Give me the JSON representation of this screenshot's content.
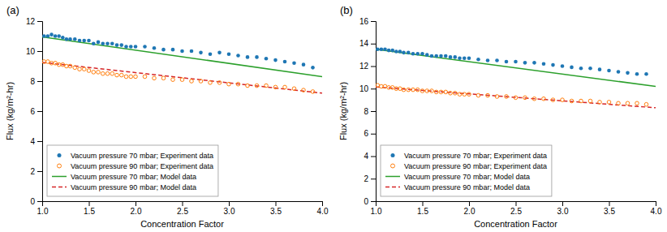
{
  "chart_data": [
    {
      "type": "scatter",
      "title": "(a)",
      "xlabel": "Concentration Factor",
      "ylabel": "Flux (kg/m²-hr)",
      "xlim": [
        1.0,
        4.0
      ],
      "xticks": [
        {
          "value": 1.0,
          "label": "1.0"
        },
        1.5,
        {
          "value": 2.0,
          "label": "2.0"
        },
        2.5,
        {
          "value": 3.0,
          "label": "3.0"
        },
        3.5,
        {
          "value": 4.0,
          "label": "4.0"
        }
      ],
      "ylim": [
        0,
        12
      ],
      "yticks": [
        0,
        2,
        4,
        6,
        8,
        10,
        12
      ],
      "grid": false,
      "legend": "lower left",
      "series": [
        {
          "name": "Vacuum pressure 70 mbar; Experiment data",
          "type": "scatter",
          "marker": "circle",
          "x": [
            1.02,
            1.06,
            1.1,
            1.14,
            1.18,
            1.22,
            1.26,
            1.3,
            1.35,
            1.4,
            1.45,
            1.5,
            1.55,
            1.6,
            1.65,
            1.7,
            1.75,
            1.8,
            1.85,
            1.9,
            1.95,
            2.0,
            2.1,
            2.2,
            2.3,
            2.4,
            2.5,
            2.6,
            2.7,
            2.8,
            2.9,
            3.0,
            3.1,
            3.2,
            3.3,
            3.4,
            3.5,
            3.6,
            3.7,
            3.8,
            3.9
          ],
          "values": [
            11.0,
            11.0,
            11.1,
            11.0,
            11.0,
            10.9,
            10.8,
            10.8,
            10.8,
            10.7,
            10.7,
            10.7,
            10.5,
            10.6,
            10.5,
            10.5,
            10.5,
            10.4,
            10.4,
            10.3,
            10.3,
            10.3,
            10.3,
            10.2,
            10.1,
            10.1,
            10.0,
            10.0,
            9.9,
            9.8,
            9.9,
            9.8,
            9.7,
            9.6,
            9.6,
            9.5,
            9.4,
            9.3,
            9.2,
            9.1,
            8.9
          ]
        },
        {
          "name": "Vacuum pressure 90 mbar; Experiment data",
          "type": "scatter",
          "marker": "circle-open",
          "x": [
            1.02,
            1.06,
            1.1,
            1.14,
            1.18,
            1.22,
            1.26,
            1.3,
            1.35,
            1.4,
            1.45,
            1.5,
            1.55,
            1.6,
            1.65,
            1.7,
            1.75,
            1.8,
            1.85,
            1.9,
            1.95,
            2.0,
            2.1,
            2.2,
            2.3,
            2.4,
            2.5,
            2.6,
            2.7,
            2.8,
            2.9,
            3.0,
            3.1,
            3.2,
            3.3,
            3.4,
            3.5,
            3.6,
            3.7,
            3.8,
            3.9
          ],
          "values": [
            9.3,
            9.3,
            9.2,
            9.2,
            9.1,
            9.1,
            9.0,
            9.0,
            8.9,
            8.8,
            8.8,
            8.7,
            8.6,
            8.6,
            8.5,
            8.5,
            8.5,
            8.4,
            8.4,
            8.3,
            8.3,
            8.3,
            8.3,
            8.2,
            8.2,
            8.1,
            8.1,
            8.0,
            8.0,
            7.9,
            7.9,
            7.8,
            7.8,
            7.7,
            7.7,
            7.7,
            7.6,
            7.6,
            7.5,
            7.4,
            7.3
          ]
        },
        {
          "name": "Vacuum pressure 70 mbar; Model data",
          "type": "line",
          "line_style": "solid",
          "x": [
            1.0,
            4.0
          ],
          "values": [
            10.95,
            8.3
          ]
        },
        {
          "name": "Vacuum pressure 90 mbar; Model data",
          "type": "line",
          "line_style": "dashed",
          "x": [
            1.0,
            4.0
          ],
          "values": [
            9.25,
            7.2
          ]
        }
      ]
    },
    {
      "type": "scatter",
      "title": "(b)",
      "xlabel": "Concentration Factor",
      "ylabel": "Flux (kg/m²-hr)",
      "xlim": [
        1.0,
        4.0
      ],
      "xticks": [
        {
          "value": 1.0,
          "label": "1.0"
        },
        1.5,
        {
          "value": 2.0,
          "label": "2.0"
        },
        2.5,
        {
          "value": 3.0,
          "label": "3.0"
        },
        3.5,
        {
          "value": 4.0,
          "label": "4.0"
        }
      ],
      "ylim": [
        0,
        16
      ],
      "yticks": [
        0,
        2,
        4,
        6,
        8,
        10,
        12,
        14,
        16
      ],
      "grid": false,
      "legend": "lower left",
      "series": [
        {
          "name": "Vacuum pressure 70 mbar; Experiment data",
          "type": "scatter",
          "marker": "circle",
          "x": [
            1.02,
            1.06,
            1.1,
            1.14,
            1.18,
            1.22,
            1.26,
            1.3,
            1.35,
            1.4,
            1.45,
            1.5,
            1.55,
            1.6,
            1.65,
            1.7,
            1.75,
            1.8,
            1.85,
            1.9,
            1.95,
            2.0,
            2.1,
            2.2,
            2.3,
            2.4,
            2.5,
            2.6,
            2.7,
            2.8,
            2.9,
            3.0,
            3.1,
            3.2,
            3.3,
            3.4,
            3.5,
            3.6,
            3.7,
            3.8,
            3.9
          ],
          "values": [
            13.5,
            13.5,
            13.5,
            13.4,
            13.4,
            13.3,
            13.3,
            13.2,
            13.2,
            13.1,
            13.1,
            13.1,
            13.0,
            12.9,
            12.9,
            12.9,
            12.9,
            12.8,
            12.8,
            12.7,
            12.7,
            12.7,
            12.6,
            12.5,
            12.5,
            12.4,
            12.4,
            12.3,
            12.3,
            12.2,
            12.1,
            12.0,
            11.9,
            11.8,
            11.8,
            11.7,
            11.6,
            11.5,
            11.4,
            11.3,
            11.3
          ]
        },
        {
          "name": "Vacuum pressure 90 mbar; Experiment data",
          "type": "scatter",
          "marker": "circle-open",
          "x": [
            1.02,
            1.06,
            1.1,
            1.14,
            1.18,
            1.22,
            1.26,
            1.3,
            1.35,
            1.4,
            1.45,
            1.5,
            1.55,
            1.6,
            1.65,
            1.7,
            1.75,
            1.8,
            1.85,
            1.9,
            1.95,
            2.0,
            2.1,
            2.2,
            2.3,
            2.4,
            2.5,
            2.6,
            2.7,
            2.8,
            2.9,
            3.0,
            3.1,
            3.2,
            3.3,
            3.4,
            3.5,
            3.6,
            3.7,
            3.8,
            3.9
          ],
          "values": [
            10.3,
            10.2,
            10.2,
            10.1,
            10.1,
            10.0,
            10.0,
            9.9,
            9.9,
            9.9,
            9.9,
            9.8,
            9.8,
            9.8,
            9.7,
            9.7,
            9.7,
            9.6,
            9.6,
            9.5,
            9.5,
            9.5,
            9.4,
            9.4,
            9.3,
            9.3,
            9.2,
            9.2,
            9.1,
            9.1,
            9.0,
            9.0,
            8.9,
            8.9,
            8.9,
            8.8,
            8.8,
            8.7,
            8.7,
            8.7,
            8.6
          ]
        },
        {
          "name": "Vacuum pressure 70 mbar; Model data",
          "type": "line",
          "line_style": "solid",
          "x": [
            1.0,
            4.0
          ],
          "values": [
            13.5,
            10.2
          ]
        },
        {
          "name": "Vacuum pressure 90 mbar; Model data",
          "type": "line",
          "line_style": "dashed",
          "x": [
            1.0,
            4.0
          ],
          "values": [
            10.15,
            8.3
          ]
        }
      ]
    }
  ]
}
